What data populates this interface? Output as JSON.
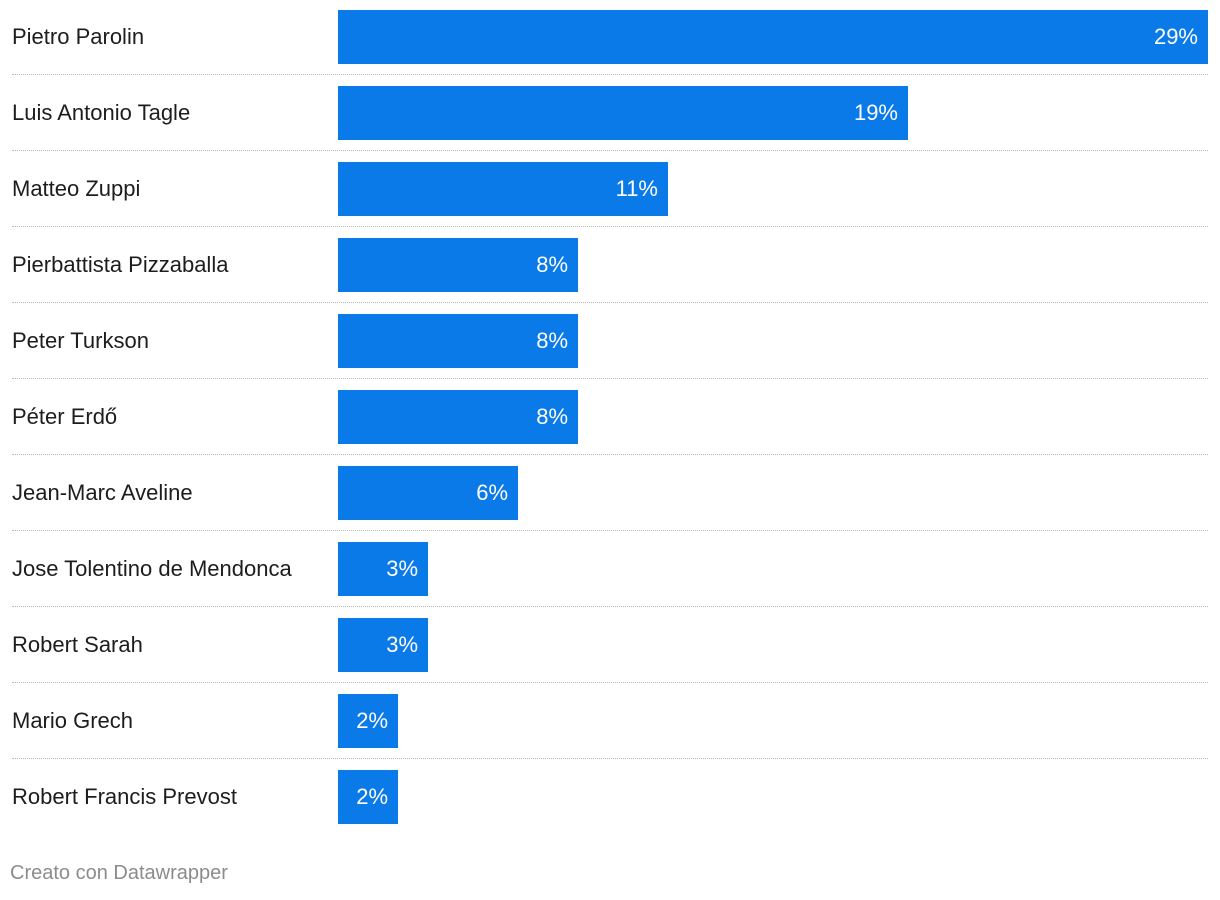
{
  "chart_data": {
    "type": "bar",
    "orientation": "horizontal",
    "categories": [
      "Pietro Parolin",
      "Luis Antonio Tagle",
      "Matteo Zuppi",
      "Pierbattista Pizzaballa",
      "Peter Turkson",
      "Péter Erdő",
      "Jean-Marc Aveline",
      "Jose Tolentino de Mendonca",
      "Robert Sarah",
      "Mario Grech",
      "Robert Francis Prevost"
    ],
    "values": [
      29,
      19,
      11,
      8,
      8,
      8,
      6,
      3,
      3,
      2,
      2
    ],
    "value_labels": [
      "29%",
      "19%",
      "11%",
      "8%",
      "8%",
      "8%",
      "6%",
      "3%",
      "3%",
      "2%",
      "2%"
    ],
    "xlim": [
      0,
      29
    ],
    "bar_color": "#0a7ae9",
    "grid": false
  },
  "footer": {
    "credit": "Creato con Datawrapper"
  }
}
